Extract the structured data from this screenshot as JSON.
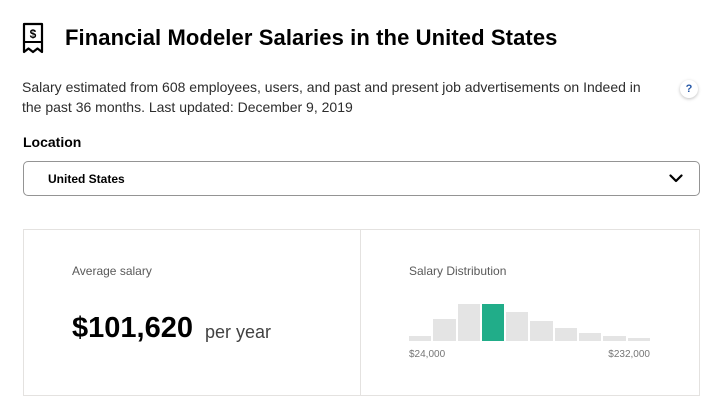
{
  "header": {
    "title": "Financial Modeler Salaries in the United States",
    "icon": "dollar-receipt-icon"
  },
  "description": "Salary estimated from 608 employees, users, and past and present job advertisements on Indeed in the past 36 months. Last updated: December 9, 2019",
  "help": {
    "label": "?"
  },
  "location": {
    "label": "Location",
    "selected": "United States"
  },
  "average": {
    "label": "Average salary",
    "amount": "$101,620",
    "period": "per year"
  },
  "distribution": {
    "label": "Salary Distribution",
    "min_label": "$24,000",
    "max_label": "$232,000",
    "bars": [
      0.1,
      0.43,
      0.73,
      0.73,
      0.57,
      0.39,
      0.25,
      0.16,
      0.1,
      0.06
    ],
    "active_index": 3,
    "accent_color": "#21ad89"
  }
}
